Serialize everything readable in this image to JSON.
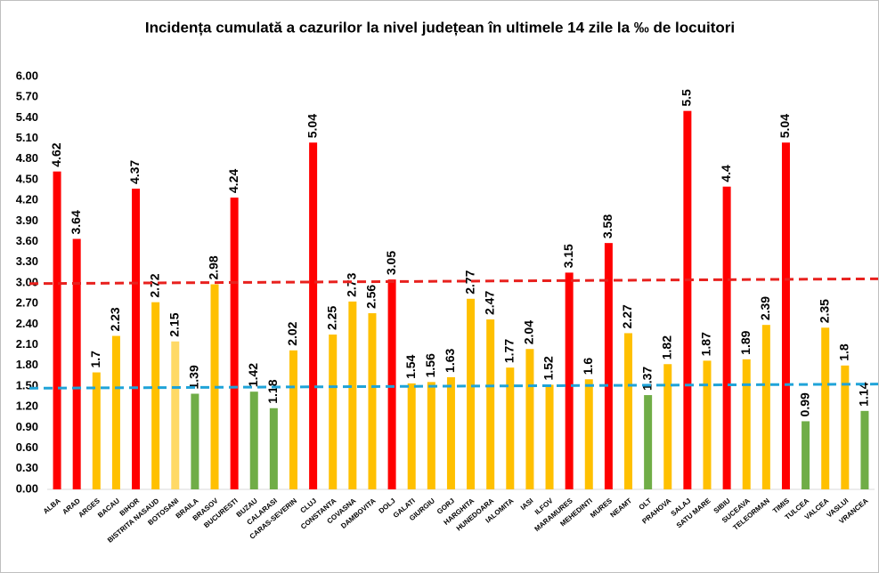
{
  "chart_data": {
    "type": "bar",
    "title": "Incidența cumulată a cazurilor la nivel județean în ultimele 14 zile la ‰ de locuitori",
    "categories": [
      "ALBA",
      "ARAD",
      "ARGES",
      "BACAU",
      "BIHOR",
      "BISTRITA NASAUD",
      "BOTOSANI",
      "BRAILA",
      "BRASOV",
      "BUCURESTI",
      "BUZAU",
      "CALARASI",
      "CARAS-SEVERIN",
      "CLUJ",
      "CONSTANTA",
      "COVASNA",
      "DAMBOVITA",
      "DOLJ",
      "GALATI",
      "GIURGIU",
      "GORJ",
      "HARGHITA",
      "HUNEDOARA",
      "IALOMITA",
      "IASI",
      "ILFOV",
      "MARAMURES",
      "MEHEDINTI",
      "MURES",
      "NEAMT",
      "OLT",
      "PRAHOVA",
      "SALAJ",
      "SATU MARE",
      "SIBIU",
      "SUCEAVA",
      "TELEORMAN",
      "TIMIS",
      "TULCEA",
      "VALCEA",
      "VASLUI",
      "VRANCEA"
    ],
    "values": [
      4.62,
      3.64,
      1.7,
      2.23,
      4.37,
      2.72,
      2.15,
      1.39,
      2.98,
      4.24,
      1.42,
      1.18,
      2.02,
      5.04,
      2.25,
      2.73,
      2.56,
      3.05,
      1.54,
      1.56,
      1.63,
      2.77,
      2.47,
      1.77,
      2.04,
      1.52,
      3.15,
      1.6,
      3.58,
      2.27,
      1.37,
      1.82,
      5.5,
      1.87,
      4.4,
      1.89,
      2.39,
      5.04,
      0.99,
      2.35,
      1.8,
      1.14
    ],
    "colors": [
      "#ff0000",
      "#ff0000",
      "#ffc000",
      "#ffc000",
      "#ff0000",
      "#ffc000",
      "#ffd966",
      "#70ad47",
      "#ffc000",
      "#ff0000",
      "#70ad47",
      "#70ad47",
      "#ffc000",
      "#ff0000",
      "#ffc000",
      "#ffc000",
      "#ffc000",
      "#ff0000",
      "#ffc000",
      "#ffc000",
      "#ffc000",
      "#ffc000",
      "#ffc000",
      "#ffc000",
      "#ffc000",
      "#ffc000",
      "#ff0000",
      "#ffc000",
      "#ff0000",
      "#ffc000",
      "#70ad47",
      "#ffc000",
      "#ff0000",
      "#ffc000",
      "#ff0000",
      "#ffc000",
      "#ffc000",
      "#ff0000",
      "#70ad47",
      "#ffc000",
      "#ffc000",
      "#70ad47"
    ],
    "reference_lines": [
      {
        "color": "#e8211e",
        "values": [
          2.99,
          3.06
        ]
      },
      {
        "color": "#1fa3d8",
        "values": [
          1.47,
          1.53
        ]
      }
    ],
    "ylim": [
      0,
      6
    ],
    "yticks": [
      {
        "value": 0,
        "label": "0.00"
      },
      {
        "value": 0.3,
        "label": "0.30"
      },
      {
        "value": 0.6,
        "label": "0.60"
      },
      {
        "value": 0.9,
        "label": "0.90"
      },
      {
        "value": 1.2,
        "label": "1.20"
      },
      {
        "value": 1.5,
        "label": "1.50"
      },
      {
        "value": 1.8,
        "label": "1.80"
      },
      {
        "value": 2.1,
        "label": "2.10"
      },
      {
        "value": 2.4,
        "label": "2.40"
      },
      {
        "value": 2.7,
        "label": "2.70"
      },
      {
        "value": 3,
        "label": "3.00"
      },
      {
        "value": 3.3,
        "label": "3.30"
      },
      {
        "value": 3.6,
        "label": "3.60"
      },
      {
        "value": 3.9,
        "label": "3.90"
      },
      {
        "value": 4.2,
        "label": "4.20"
      },
      {
        "value": 4.5,
        "label": "4.50"
      },
      {
        "value": 4.8,
        "label": "4.80"
      },
      {
        "value": 5.1,
        "label": "5.10"
      },
      {
        "value": 5.4,
        "label": "5.40"
      },
      {
        "value": 5.7,
        "label": "5.70"
      },
      {
        "value": 6,
        "label": "6.00"
      }
    ],
    "grid": false
  }
}
